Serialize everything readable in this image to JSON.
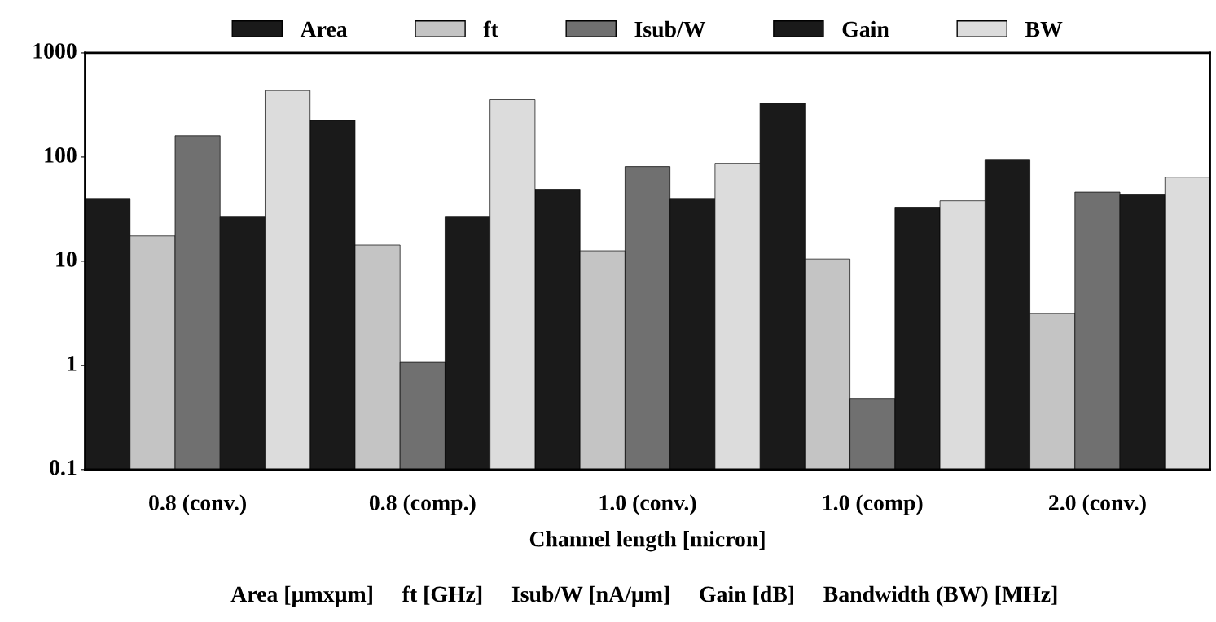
{
  "chart_data": {
    "type": "bar",
    "log": "y",
    "xlabel": "Channel length [micron]",
    "categories": [
      "0.8 (conv.)",
      "0.8 (comp.)",
      "1.0 (conv.)",
      "1.0 (comp)",
      "2.0 (conv.)"
    ],
    "series": [
      {
        "name": "Area",
        "color": "#1a1a1a",
        "values": [
          40,
          225,
          49,
          330,
          95
        ]
      },
      {
        "name": "ft",
        "color": "#c4c4c4",
        "values": [
          17.5,
          14.3,
          12.6,
          10.5,
          3.15
        ]
      },
      {
        "name": "Isub/W",
        "color": "#707070",
        "values": [
          160,
          1.07,
          81,
          0.48,
          46
        ]
      },
      {
        "name": "Gain",
        "color": "#1a1a1a",
        "values": [
          27,
          27,
          40,
          33,
          44
        ]
      },
      {
        "name": "BW",
        "color": "#dcdcdc",
        "values": [
          435,
          355,
          87,
          38,
          64
        ]
      }
    ],
    "ylim": [
      0.1,
      1000
    ],
    "yticks": [
      0.1,
      1,
      10,
      100,
      1000
    ],
    "grid": false,
    "legend": "top",
    "annotations": [
      "Area [µmxµm]     ft [GHz]     Isub/W [nA/µm]     Gain [dB]     Bandwidth (BW) [MHz]"
    ]
  }
}
